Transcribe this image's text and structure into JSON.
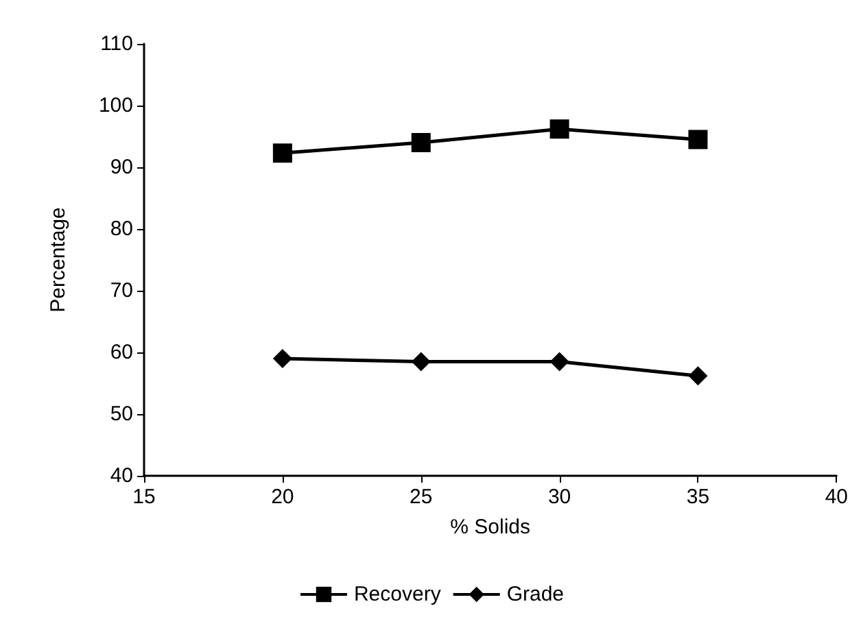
{
  "chart_data": {
    "type": "line",
    "xlabel": "% Solids",
    "ylabel": "Percentage",
    "x": [
      20,
      25,
      30,
      35
    ],
    "series": [
      {
        "name": "Recovery",
        "color": "#000000",
        "marker": "square",
        "values": [
          92.3,
          94,
          96.2,
          94.5
        ]
      },
      {
        "name": "Grade",
        "color": "#000000",
        "marker": "diamond",
        "values": [
          59,
          58.5,
          58.5,
          56.2
        ]
      }
    ],
    "xlim": [
      15,
      40
    ],
    "xticks": [
      15,
      20,
      25,
      30,
      35,
      40
    ],
    "ylim": [
      40,
      110
    ],
    "yticks": [
      40,
      50,
      60,
      70,
      80,
      90,
      100,
      110
    ],
    "grid": false,
    "legend": "bottom",
    "line_style": "solid"
  }
}
